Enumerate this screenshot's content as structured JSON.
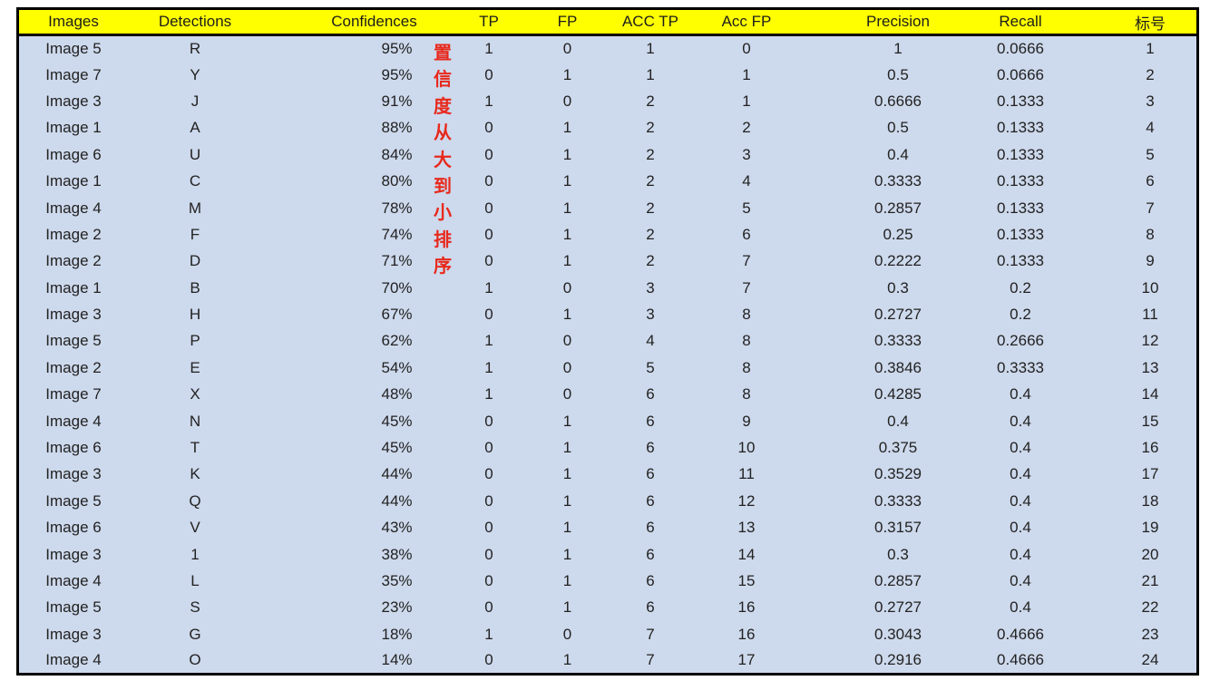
{
  "table": {
    "columns": [
      {
        "key": "image",
        "label": "Images"
      },
      {
        "key": "detection",
        "label": "Detections"
      },
      {
        "key": "confidence",
        "label": "Confidences"
      },
      {
        "key": "tp",
        "label": "TP"
      },
      {
        "key": "fp",
        "label": "FP"
      },
      {
        "key": "acc_tp",
        "label": "ACC TP"
      },
      {
        "key": "acc_fp",
        "label": "Acc FP"
      },
      {
        "key": "precision",
        "label": "Precision"
      },
      {
        "key": "recall",
        "label": "Recall"
      },
      {
        "key": "index",
        "label": "标号"
      }
    ],
    "rows": [
      {
        "image": "Image 5",
        "detection": "R",
        "confidence": "95%",
        "tp": "1",
        "fp": "0",
        "acc_tp": "1",
        "acc_fp": "0",
        "precision": "1",
        "recall": "0.0666",
        "index": "1"
      },
      {
        "image": "Image 7",
        "detection": "Y",
        "confidence": "95%",
        "tp": "0",
        "fp": "1",
        "acc_tp": "1",
        "acc_fp": "1",
        "precision": "0.5",
        "recall": "0.0666",
        "index": "2"
      },
      {
        "image": "Image 3",
        "detection": "J",
        "confidence": "91%",
        "tp": "1",
        "fp": "0",
        "acc_tp": "2",
        "acc_fp": "1",
        "precision": "0.6666",
        "recall": "0.1333",
        "index": "3"
      },
      {
        "image": "Image 1",
        "detection": "A",
        "confidence": "88%",
        "tp": "0",
        "fp": "1",
        "acc_tp": "2",
        "acc_fp": "2",
        "precision": "0.5",
        "recall": "0.1333",
        "index": "4"
      },
      {
        "image": "Image 6",
        "detection": "U",
        "confidence": "84%",
        "tp": "0",
        "fp": "1",
        "acc_tp": "2",
        "acc_fp": "3",
        "precision": "0.4",
        "recall": "0.1333",
        "index": "5"
      },
      {
        "image": "Image 1",
        "detection": "C",
        "confidence": "80%",
        "tp": "0",
        "fp": "1",
        "acc_tp": "2",
        "acc_fp": "4",
        "precision": "0.3333",
        "recall": "0.1333",
        "index": "6"
      },
      {
        "image": "Image 4",
        "detection": "M",
        "confidence": "78%",
        "tp": "0",
        "fp": "1",
        "acc_tp": "2",
        "acc_fp": "5",
        "precision": "0.2857",
        "recall": "0.1333",
        "index": "7"
      },
      {
        "image": "Image 2",
        "detection": "F",
        "confidence": "74%",
        "tp": "0",
        "fp": "1",
        "acc_tp": "2",
        "acc_fp": "6",
        "precision": "0.25",
        "recall": "0.1333",
        "index": "8"
      },
      {
        "image": "Image 2",
        "detection": "D",
        "confidence": "71%",
        "tp": "0",
        "fp": "1",
        "acc_tp": "2",
        "acc_fp": "7",
        "precision": "0.2222",
        "recall": "0.1333",
        "index": "9"
      },
      {
        "image": "Image 1",
        "detection": "B",
        "confidence": "70%",
        "tp": "1",
        "fp": "0",
        "acc_tp": "3",
        "acc_fp": "7",
        "precision": "0.3",
        "recall": "0.2",
        "index": "10"
      },
      {
        "image": "Image 3",
        "detection": "H",
        "confidence": "67%",
        "tp": "0",
        "fp": "1",
        "acc_tp": "3",
        "acc_fp": "8",
        "precision": "0.2727",
        "recall": "0.2",
        "index": "11"
      },
      {
        "image": "Image 5",
        "detection": "P",
        "confidence": "62%",
        "tp": "1",
        "fp": "0",
        "acc_tp": "4",
        "acc_fp": "8",
        "precision": "0.3333",
        "recall": "0.2666",
        "index": "12"
      },
      {
        "image": "Image 2",
        "detection": "E",
        "confidence": "54%",
        "tp": "1",
        "fp": "0",
        "acc_tp": "5",
        "acc_fp": "8",
        "precision": "0.3846",
        "recall": "0.3333",
        "index": "13"
      },
      {
        "image": "Image 7",
        "detection": "X",
        "confidence": "48%",
        "tp": "1",
        "fp": "0",
        "acc_tp": "6",
        "acc_fp": "8",
        "precision": "0.4285",
        "recall": "0.4",
        "index": "14"
      },
      {
        "image": "Image 4",
        "detection": "N",
        "confidence": "45%",
        "tp": "0",
        "fp": "1",
        "acc_tp": "6",
        "acc_fp": "9",
        "precision": "0.4",
        "recall": "0.4",
        "index": "15"
      },
      {
        "image": "Image 6",
        "detection": "T",
        "confidence": "45%",
        "tp": "0",
        "fp": "1",
        "acc_tp": "6",
        "acc_fp": "10",
        "precision": "0.375",
        "recall": "0.4",
        "index": "16"
      },
      {
        "image": "Image 3",
        "detection": "K",
        "confidence": "44%",
        "tp": "0",
        "fp": "1",
        "acc_tp": "6",
        "acc_fp": "11",
        "precision": "0.3529",
        "recall": "0.4",
        "index": "17"
      },
      {
        "image": "Image 5",
        "detection": "Q",
        "confidence": "44%",
        "tp": "0",
        "fp": "1",
        "acc_tp": "6",
        "acc_fp": "12",
        "precision": "0.3333",
        "recall": "0.4",
        "index": "18"
      },
      {
        "image": "Image 6",
        "detection": "V",
        "confidence": "43%",
        "tp": "0",
        "fp": "1",
        "acc_tp": "6",
        "acc_fp": "13",
        "precision": "0.3157",
        "recall": "0.4",
        "index": "19"
      },
      {
        "image": "Image 3",
        "detection": "1",
        "confidence": "38%",
        "tp": "0",
        "fp": "1",
        "acc_tp": "6",
        "acc_fp": "14",
        "precision": "0.3",
        "recall": "0.4",
        "index": "20"
      },
      {
        "image": "Image 4",
        "detection": "L",
        "confidence": "35%",
        "tp": "0",
        "fp": "1",
        "acc_tp": "6",
        "acc_fp": "15",
        "precision": "0.2857",
        "recall": "0.4",
        "index": "21"
      },
      {
        "image": "Image 5",
        "detection": "S",
        "confidence": "23%",
        "tp": "0",
        "fp": "1",
        "acc_tp": "6",
        "acc_fp": "16",
        "precision": "0.2727",
        "recall": "0.4",
        "index": "22"
      },
      {
        "image": "Image 3",
        "detection": "G",
        "confidence": "18%",
        "tp": "1",
        "fp": "0",
        "acc_tp": "7",
        "acc_fp": "16",
        "precision": "0.3043",
        "recall": "0.4666",
        "index": "23"
      },
      {
        "image": "Image 4",
        "detection": "O",
        "confidence": "14%",
        "tp": "0",
        "fp": "1",
        "acc_tp": "7",
        "acc_fp": "17",
        "precision": "0.2916",
        "recall": "0.4666",
        "index": "24"
      }
    ]
  },
  "annotation": {
    "text": "置信度从大到小排序"
  },
  "colors": {
    "header_bg": "#ffff00",
    "body_bg": "#cdd9ec",
    "index_bg": "#e0b3b2",
    "annotation_red": "#e8291c",
    "border": "#000000"
  }
}
